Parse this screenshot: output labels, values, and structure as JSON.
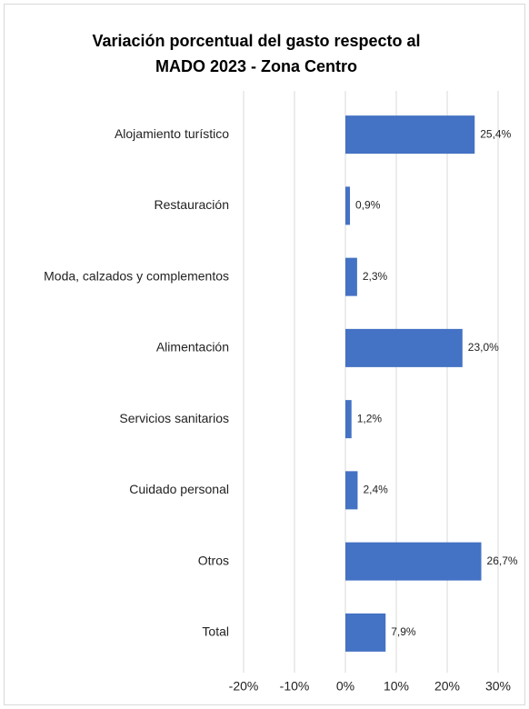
{
  "chart_data": {
    "type": "bar",
    "orientation": "horizontal",
    "title": [
      "Variación porcentual del gasto respecto al",
      "MADO 2023 - Zona Centro"
    ],
    "categories": [
      "Alojamiento turístico",
      "Restauración",
      "Moda, calzados y complementos",
      "Alimentación",
      "Servicios sanitarios",
      "Cuidado personal",
      "Otros",
      "Total"
    ],
    "values": [
      25.4,
      0.9,
      2.3,
      23.0,
      1.2,
      2.4,
      26.7,
      7.9
    ],
    "value_labels": [
      "25,4%",
      "0,9%",
      "2,3%",
      "23,0%",
      "1,2%",
      "2,4%",
      "26,7%",
      "7,9%"
    ],
    "color": "#4472c4",
    "xlim": [
      -20,
      30
    ],
    "xticks": [
      {
        "value": -20,
        "label": "-20%"
      },
      {
        "value": -10,
        "label": "-10%"
      },
      {
        "value": 0,
        "label": "0%"
      },
      {
        "value": 10,
        "label": "10%"
      },
      {
        "value": 20,
        "label": "20%"
      },
      {
        "value": 30,
        "label": "30%"
      }
    ],
    "grid": true
  }
}
